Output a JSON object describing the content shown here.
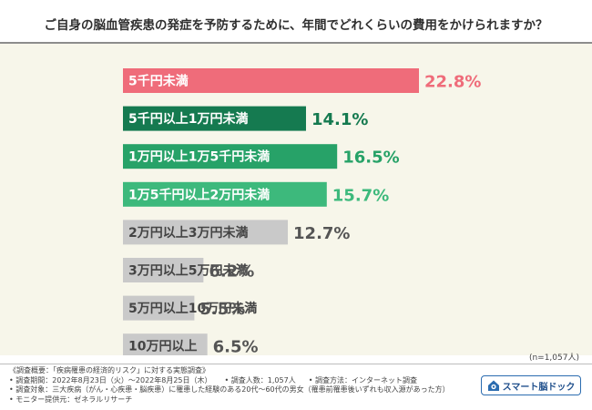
{
  "title": "ご自身の脳血管疾患の発症を予防するために、年間でどれくらいの費用をかけられますか？",
  "sample_size": "(n=1,057人)",
  "colors": {
    "pink": "#ef6c7a",
    "dark_green": "#157a50",
    "mid_green": "#27a268",
    "light_green": "#3db97c",
    "gray": "#c9c9c9",
    "background": "#f7f6ea"
  },
  "chart_data": {
    "type": "bar",
    "orientation": "horizontal",
    "title": "ご自身の脳血管疾患の発症を予防するために、年間でどれくらいの費用をかけられますか？",
    "xlabel": "",
    "ylabel": "",
    "categories": [
      "5千円未満",
      "5千円以上1万円未満",
      "1万円以上1万5千円未満",
      "1万5千円以上2万円未満",
      "2万円以上3万円未満",
      "3万円以上5万円未満",
      "5万円以上10万円未満",
      "10万円以上"
    ],
    "values": [
      22.8,
      14.1,
      16.5,
      15.7,
      12.7,
      6.2,
      5.5,
      6.5
    ],
    "value_labels": [
      "22.8%",
      "14.1%",
      "16.5%",
      "15.7%",
      "12.7%",
      "6.2%",
      "5.5%",
      "6.5%"
    ],
    "bar_colors": [
      "#ef6c7a",
      "#157a50",
      "#27a268",
      "#3db97c",
      "#c9c9c9",
      "#c9c9c9",
      "#c9c9c9",
      "#c9c9c9"
    ],
    "label_colors": [
      "#ffffff",
      "#ffffff",
      "#ffffff",
      "#ffffff",
      "#444444",
      "#444444",
      "#444444",
      "#444444"
    ],
    "value_colors": [
      "#ef6c7a",
      "#157a50",
      "#27a268",
      "#3db97c",
      "#555555",
      "#555555",
      "#555555",
      "#555555"
    ],
    "xlim": [
      0,
      22.8
    ],
    "grid": false,
    "legend": "none"
  },
  "notes": {
    "survey_overview": "《調査概要：「疾病罹患の経済的リスク」に対する実態調査》",
    "period": "• 調査期間：2022年8月23日（火）〜2022年8月25日（木）",
    "respondents": "• 調査人数：1,057人",
    "method": "• 調査方法：インターネット調査",
    "target": "• 調査対象：三大疾病（がん・心疾患・脳疾患）に罹患した経験のある20代〜60代の男女（罹患前罹患後いずれも収入源があった方）",
    "provider": "• モニター提供元：ゼネラルリサーチ"
  },
  "logo": {
    "text": "スマート脳ドック",
    "icon": "house-brain-icon"
  }
}
